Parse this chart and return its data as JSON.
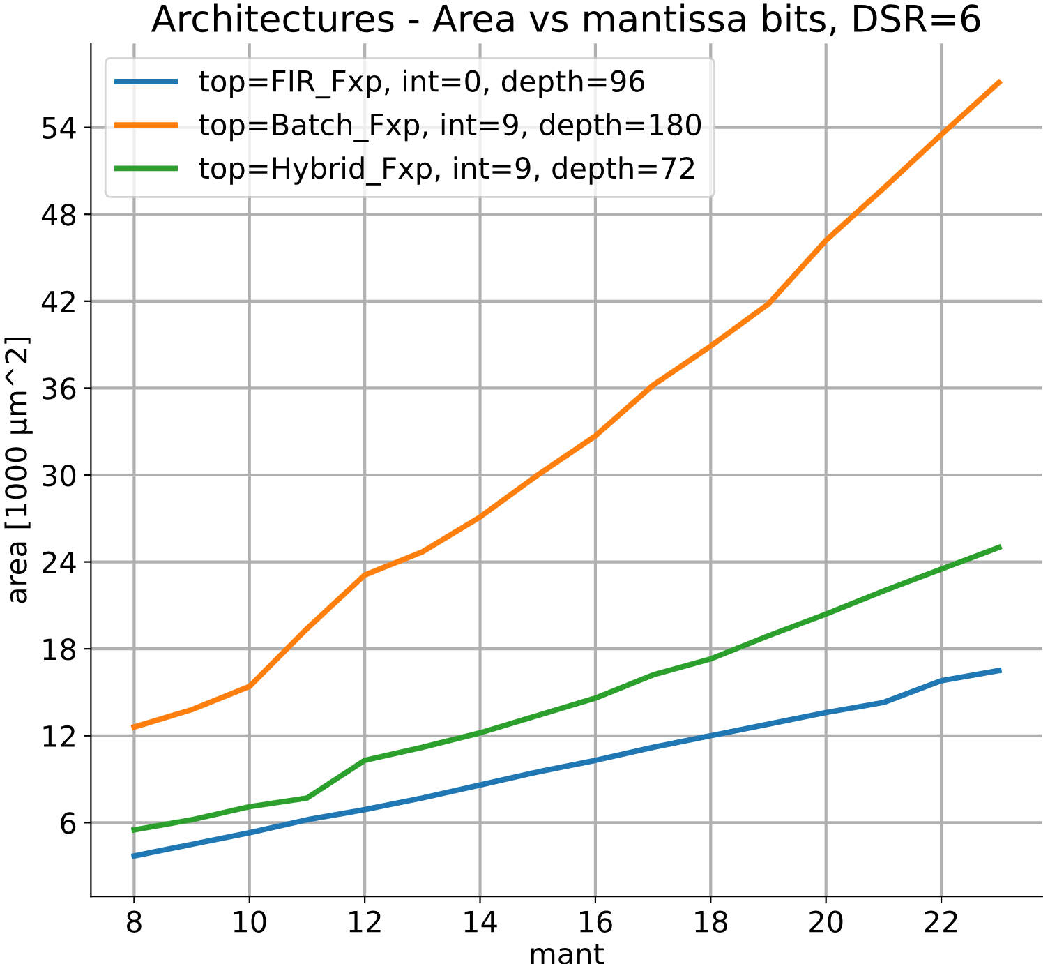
{
  "chart_data": {
    "type": "line",
    "title": "Architectures - Area vs mantissa bits, DSR=6",
    "xlabel": "mant",
    "ylabel": "area [1000 µm^2]",
    "x": [
      8,
      9,
      10,
      11,
      12,
      13,
      14,
      15,
      16,
      17,
      18,
      19,
      20,
      21,
      22,
      23
    ],
    "series": [
      {
        "name": "top=FIR_Fxp, int=0, depth=96",
        "color": "#1f77b4",
        "values": [
          3.7,
          4.5,
          5.3,
          6.2,
          6.9,
          7.7,
          8.6,
          9.5,
          10.3,
          11.2,
          12.0,
          12.8,
          13.6,
          14.3,
          15.8,
          16.5
        ]
      },
      {
        "name": "top=Batch_Fxp, int=9, depth=180",
        "color": "#ff7f0e",
        "values": [
          12.6,
          13.8,
          15.4,
          19.4,
          23.1,
          24.7,
          27.1,
          30.0,
          32.7,
          36.2,
          38.9,
          41.8,
          46.2,
          49.8,
          53.5,
          57.1
        ]
      },
      {
        "name": "top=Hybrid_Fxp, int=9, depth=72",
        "color": "#2ca02c",
        "values": [
          5.5,
          6.2,
          7.1,
          7.7,
          10.3,
          11.2,
          12.2,
          13.4,
          14.6,
          16.2,
          17.3,
          18.9,
          20.4,
          22.0,
          23.5,
          25.0
        ]
      }
    ],
    "xlim": [
      7.25,
      23.75
    ],
    "ylim": [
      0.9,
      59.8
    ],
    "xticks": [
      8,
      10,
      12,
      14,
      16,
      18,
      20,
      22
    ],
    "yticks": [
      6,
      12,
      18,
      24,
      30,
      36,
      42,
      48,
      54
    ],
    "grid": true,
    "legend": "top left",
    "marker": "none",
    "line_style": "solid"
  }
}
